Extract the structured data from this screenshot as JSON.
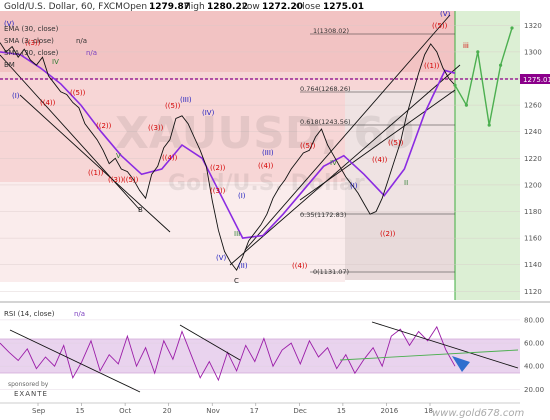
{
  "header": {
    "symbol": "Gold/U.S. Dollar, 60, FXCM",
    "open_label": "Open",
    "open": "1279.87",
    "high_label": "High",
    "high": "1280.22",
    "low_label": "Low",
    "low": "1272.20",
    "close_label": "Close",
    "close": "1275.01"
  },
  "legend": {
    "ema30": "EMA (30, close)",
    "sma3": "SMA (3, close)",
    "sma_b": "SMA (30, close)",
    "bm": "BM",
    "na": "n/a"
  },
  "watermark": "XAUUSD, 60",
  "watermark2": "Gold/U.S. Dollar",
  "price_badge": "1275.01",
  "rsi_label": "RSI (14, close)",
  "rsi_na": "n/a",
  "sponsor_top": "sponsored by",
  "sponsor": "EXANTE",
  "site": "www.gold678.com",
  "colors": {
    "pink_zone": "#f6c6c6",
    "green_zone": "#d8ecd0",
    "gray_zone": "#e9e2e2",
    "price_line": "#111111",
    "ema": "#8b2be2",
    "sma": "#1565c0",
    "rsi": "#9b1da8",
    "close_line": "#8b008b",
    "wave_red": "#d40000",
    "wave_blue": "#1b1bbf",
    "forecast": "#4caf50"
  },
  "chart_data": [
    {
      "type": "line",
      "title": "Gold/U.S. Dollar, 60, FXCM",
      "ylim": [
        1115,
        1330
      ],
      "y_ticks": [
        1320,
        1300,
        1280,
        1260,
        1240,
        1220,
        1200,
        1180,
        1160,
        1140,
        1120
      ],
      "x_ticks": [
        "Sep",
        "15",
        "Oct",
        "20",
        "Nov",
        "17",
        "Dec",
        "15",
        "2016",
        "18"
      ],
      "series": [
        {
          "name": "Price",
          "x": [
            0,
            6,
            12,
            18,
            24,
            30,
            36,
            42,
            48,
            54,
            60,
            66,
            72,
            78,
            84,
            90,
            96,
            102,
            108,
            114,
            120,
            126,
            132,
            138,
            144,
            150,
            156,
            162,
            168,
            174,
            180,
            186,
            192,
            198,
            204,
            210,
            216,
            222,
            228,
            234,
            240,
            246,
            252,
            258,
            264,
            270,
            276,
            282,
            288,
            294,
            300,
            306,
            312,
            318,
            324,
            330,
            336,
            342,
            348,
            354,
            360,
            366,
            372,
            378,
            384,
            390,
            396,
            402,
            408,
            414,
            420,
            426,
            432,
            438,
            444,
            450
          ],
          "values": [
            1307,
            1300,
            1304,
            1296,
            1302,
            1294,
            1290,
            1296,
            1282,
            1276,
            1270,
            1268,
            1262,
            1258,
            1246,
            1240,
            1234,
            1226,
            1216,
            1220,
            1212,
            1210,
            1204,
            1196,
            1190,
            1208,
            1214,
            1228,
            1234,
            1250,
            1252,
            1246,
            1236,
            1226,
            1214,
            1188,
            1166,
            1150,
            1142,
            1136,
            1146,
            1158,
            1164,
            1170,
            1178,
            1190,
            1198,
            1204,
            1212,
            1218,
            1224,
            1226,
            1236,
            1242,
            1230,
            1222,
            1214,
            1206,
            1200,
            1194,
            1186,
            1178,
            1180,
            1190,
            1204,
            1218,
            1232,
            1252,
            1268,
            1284,
            1298,
            1306,
            1300,
            1288,
            1280,
            1275
          ]
        },
        {
          "name": "EMA (30, close)",
          "x": [
            0,
            20,
            40,
            60,
            80,
            100,
            120,
            140,
            160,
            180,
            200,
            220,
            240,
            260,
            280,
            300,
            320,
            340,
            360,
            380,
            400,
            420,
            440,
            450
          ],
          "values": [
            1300,
            1298,
            1288,
            1276,
            1260,
            1240,
            1222,
            1208,
            1212,
            1230,
            1220,
            1190,
            1160,
            1162,
            1178,
            1196,
            1214,
            1222,
            1208,
            1192,
            1212,
            1254,
            1286,
            1284
          ]
        },
        {
          "name": "Forecast",
          "x": [
            450,
            462,
            474,
            486,
            498,
            510
          ],
          "values": [
            1275,
            1260,
            1300,
            1245,
            1290,
            1318
          ]
        }
      ],
      "annotations": [
        "1(1308.02)",
        "0.764(1268.26)",
        "0.618(1243.56)",
        "0.35(1172.83)",
        "0(1131.07)"
      ]
    },
    {
      "type": "line",
      "title": "RSI (14, close)",
      "ylim": [
        10,
        92
      ],
      "y_ticks": [
        80,
        60,
        40,
        20
      ],
      "series": [
        {
          "name": "RSI (14, close)",
          "x": [
            0,
            9,
            18,
            27,
            36,
            45,
            54,
            63,
            72,
            81,
            90,
            99,
            108,
            117,
            126,
            135,
            144,
            153,
            162,
            171,
            180,
            189,
            198,
            207,
            216,
            225,
            234,
            243,
            252,
            261,
            270,
            279,
            288,
            297,
            306,
            315,
            324,
            333,
            342,
            351,
            360,
            369,
            378,
            387,
            396,
            405,
            414,
            423,
            432,
            441,
            450
          ],
          "values": [
            60,
            52,
            45,
            55,
            38,
            48,
            40,
            58,
            30,
            44,
            62,
            36,
            50,
            42,
            66,
            40,
            56,
            34,
            62,
            46,
            70,
            50,
            30,
            44,
            28,
            52,
            36,
            58,
            44,
            64,
            40,
            54,
            60,
            42,
            62,
            48,
            56,
            38,
            50,
            34,
            46,
            56,
            40,
            66,
            72,
            58,
            70,
            62,
            74,
            54,
            40
          ]
        }
      ]
    }
  ]
}
